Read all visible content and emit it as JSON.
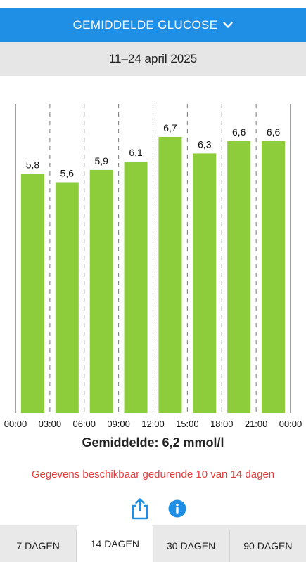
{
  "header": {
    "title": "GEMIDDELDE GLUCOSE",
    "dropdown_icon": "chevron-down-icon"
  },
  "date_range": "11–24 april 2025",
  "chart_data": {
    "type": "bar",
    "categories": [
      "00:00–03:00",
      "03:00–06:00",
      "06:00–09:00",
      "09:00–12:00",
      "12:00–15:00",
      "15:00–18:00",
      "18:00–21:00",
      "21:00–00:00"
    ],
    "values": [
      5.8,
      5.6,
      5.9,
      6.1,
      6.7,
      6.3,
      6.6,
      6.6
    ],
    "value_labels": [
      "5,8",
      "5,6",
      "5,9",
      "6,1",
      "6,7",
      "6,3",
      "6,6",
      "6,6"
    ],
    "x_ticks": [
      "00:00",
      "03:00",
      "06:00",
      "09:00",
      "12:00",
      "15:00",
      "18:00",
      "21:00",
      "00:00"
    ],
    "ylim": [
      0,
      7.5
    ],
    "grid": true,
    "bar_color": "#8dcc3a"
  },
  "average_text": "Gemiddelde: 6,2 mmol/l",
  "notice_text": "Gegevens beschikbaar gedurende 10 van 14 dagen",
  "actions": {
    "share_icon": "share-icon",
    "info_icon": "info-icon"
  },
  "tabs": [
    {
      "label": "7 DAGEN",
      "active": false
    },
    {
      "label": "14 DAGEN",
      "active": true
    },
    {
      "label": "30 DAGEN",
      "active": false
    },
    {
      "label": "90 DAGEN",
      "active": false
    }
  ],
  "colors": {
    "accent": "#1f8fe6",
    "bar": "#8dcc3a",
    "notice": "#e23b3b"
  }
}
